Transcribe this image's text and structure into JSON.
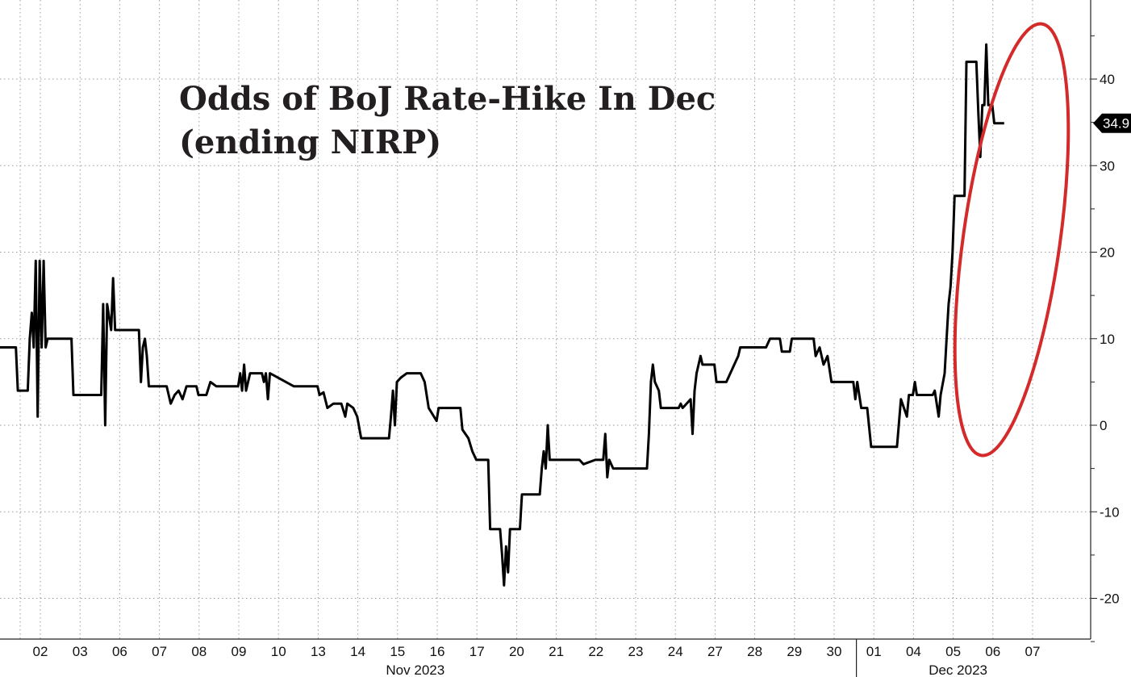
{
  "chart_data": {
    "type": "line",
    "title": "Odds of BoJ Rate-Hike In Dec",
    "subtitle": "(ending NIRP)",
    "x": [
      "02",
      "03",
      "06",
      "07",
      "08",
      "09",
      "10",
      "13",
      "14",
      "15",
      "16",
      "17",
      "20",
      "21",
      "22",
      "23",
      "24",
      "27",
      "28",
      "29",
      "30",
      "01",
      "04",
      "05",
      "06",
      "07"
    ],
    "month_labels": [
      {
        "label": "Nov 2023",
        "under": "15"
      },
      {
        "label": "Dec 2023",
        "under": "05"
      }
    ],
    "ylim": [
      -24,
      46
    ],
    "y_ticks": [
      -20,
      -10,
      0,
      10,
      20,
      30,
      40
    ],
    "last_value": 34.9,
    "grid": true,
    "series": [
      {
        "points": [
          [
            0.0,
            9
          ],
          [
            0.4,
            9
          ],
          [
            0.45,
            4
          ],
          [
            0.7,
            4
          ],
          [
            0.75,
            10
          ],
          [
            0.8,
            13
          ],
          [
            0.85,
            9
          ],
          [
            0.9,
            19
          ],
          [
            0.95,
            1
          ],
          [
            1.0,
            19
          ],
          [
            1.05,
            9
          ],
          [
            1.1,
            19
          ],
          [
            1.15,
            9
          ],
          [
            1.2,
            10
          ],
          [
            1.8,
            10
          ],
          [
            1.85,
            3.5
          ],
          [
            2.55,
            3.5
          ],
          [
            2.6,
            14
          ],
          [
            2.65,
            0
          ],
          [
            2.7,
            14
          ],
          [
            2.8,
            11
          ],
          [
            2.85,
            17
          ],
          [
            2.9,
            11
          ],
          [
            3.5,
            11
          ],
          [
            3.55,
            5
          ],
          [
            3.6,
            9
          ],
          [
            3.65,
            10
          ],
          [
            3.7,
            8
          ],
          [
            3.75,
            4.5
          ],
          [
            4.2,
            4.5
          ],
          [
            4.3,
            2.5
          ],
          [
            4.4,
            3.5
          ],
          [
            4.5,
            4
          ],
          [
            4.6,
            3
          ],
          [
            4.7,
            4.5
          ],
          [
            4.95,
            4.5
          ],
          [
            5.0,
            3.5
          ],
          [
            5.2,
            3.5
          ],
          [
            5.3,
            5
          ],
          [
            5.45,
            4.5
          ],
          [
            6.0,
            4.5
          ],
          [
            6.05,
            6
          ],
          [
            6.1,
            4
          ],
          [
            6.15,
            7
          ],
          [
            6.2,
            4
          ],
          [
            6.3,
            6
          ],
          [
            6.6,
            6
          ],
          [
            6.65,
            5
          ],
          [
            6.7,
            6
          ],
          [
            6.75,
            3
          ],
          [
            6.8,
            6
          ],
          [
            7.4,
            4.5
          ],
          [
            8.0,
            4.5
          ],
          [
            8.05,
            3.5
          ],
          [
            8.15,
            3.8
          ],
          [
            8.25,
            2
          ],
          [
            8.4,
            2.5
          ],
          [
            8.6,
            2.5
          ],
          [
            8.7,
            1
          ],
          [
            8.75,
            2.5
          ],
          [
            8.9,
            2
          ],
          [
            9.0,
            1
          ],
          [
            9.1,
            -1.5
          ],
          [
            9.8,
            -1.5
          ],
          [
            9.85,
            1
          ],
          [
            9.9,
            4
          ],
          [
            9.95,
            0
          ],
          [
            10.0,
            5
          ],
          [
            10.1,
            5.5
          ],
          [
            10.25,
            6
          ],
          [
            10.6,
            6
          ],
          [
            10.7,
            5
          ],
          [
            10.8,
            2
          ],
          [
            11.0,
            0.5
          ],
          [
            11.05,
            2
          ],
          [
            11.6,
            2
          ],
          [
            11.65,
            -0.5
          ],
          [
            11.8,
            -1.5
          ],
          [
            11.9,
            -3
          ],
          [
            12.0,
            -4
          ],
          [
            12.3,
            -4
          ],
          [
            12.35,
            -12
          ],
          [
            12.6,
            -12
          ],
          [
            12.65,
            -15
          ],
          [
            12.7,
            -18.5
          ],
          [
            12.75,
            -14
          ],
          [
            12.8,
            -17
          ],
          [
            12.85,
            -12
          ],
          [
            13.1,
            -12
          ],
          [
            13.15,
            -8
          ],
          [
            13.6,
            -8
          ],
          [
            13.65,
            -5
          ],
          [
            13.7,
            -3
          ],
          [
            13.75,
            -5
          ],
          [
            13.8,
            0
          ],
          [
            13.85,
            -4
          ],
          [
            14.6,
            -4
          ],
          [
            14.7,
            -4.5
          ],
          [
            15.0,
            -4
          ],
          [
            15.2,
            -4
          ],
          [
            15.25,
            -1
          ],
          [
            15.3,
            -6
          ],
          [
            15.35,
            -4
          ],
          [
            15.45,
            -5
          ],
          [
            16.3,
            -5
          ],
          [
            16.35,
            -1
          ],
          [
            16.4,
            5
          ],
          [
            16.45,
            7
          ],
          [
            16.5,
            5
          ],
          [
            16.6,
            4
          ],
          [
            16.65,
            2
          ],
          [
            17.1,
            2
          ],
          [
            17.15,
            2.5
          ],
          [
            17.2,
            2
          ],
          [
            17.4,
            3
          ],
          [
            17.45,
            -1
          ],
          [
            17.5,
            4
          ],
          [
            17.55,
            6
          ],
          [
            17.65,
            8
          ],
          [
            17.7,
            7
          ],
          [
            18.0,
            7
          ],
          [
            18.05,
            5
          ],
          [
            18.3,
            5
          ],
          [
            18.4,
            6
          ],
          [
            18.5,
            7
          ],
          [
            18.6,
            8
          ],
          [
            18.65,
            9
          ],
          [
            19.3,
            9
          ],
          [
            19.4,
            10
          ],
          [
            19.65,
            10
          ],
          [
            19.7,
            8.5
          ],
          [
            19.9,
            8.5
          ],
          [
            19.95,
            10
          ],
          [
            20.5,
            10
          ],
          [
            20.55,
            8
          ],
          [
            20.65,
            9
          ],
          [
            20.75,
            7
          ],
          [
            20.85,
            8
          ],
          [
            20.95,
            5
          ],
          [
            21.5,
            5
          ],
          [
            21.55,
            3
          ],
          [
            21.6,
            5
          ],
          [
            21.7,
            2
          ],
          [
            21.85,
            2
          ],
          [
            21.95,
            -2.5
          ],
          [
            22.6,
            -2.5
          ],
          [
            22.7,
            3
          ],
          [
            22.85,
            1
          ],
          [
            22.9,
            3.5
          ],
          [
            23.0,
            3.5
          ],
          [
            23.05,
            5
          ],
          [
            23.1,
            3.5
          ],
          [
            23.5,
            3.5
          ],
          [
            23.55,
            4
          ],
          [
            23.65,
            1
          ],
          [
            23.7,
            3.5
          ],
          [
            23.8,
            6
          ],
          [
            23.85,
            10
          ],
          [
            23.9,
            14
          ],
          [
            23.95,
            16
          ],
          [
            24.0,
            20
          ],
          [
            24.05,
            26.5
          ],
          [
            24.3,
            26.5
          ],
          [
            24.35,
            42
          ],
          [
            24.6,
            42
          ],
          [
            24.65,
            36
          ],
          [
            24.7,
            31
          ],
          [
            24.75,
            37
          ],
          [
            24.8,
            37
          ],
          [
            24.85,
            44
          ],
          [
            24.9,
            37
          ],
          [
            25.0,
            37
          ],
          [
            25.05,
            34.9
          ],
          [
            25.3,
            34.9
          ]
        ]
      }
    ]
  }
}
